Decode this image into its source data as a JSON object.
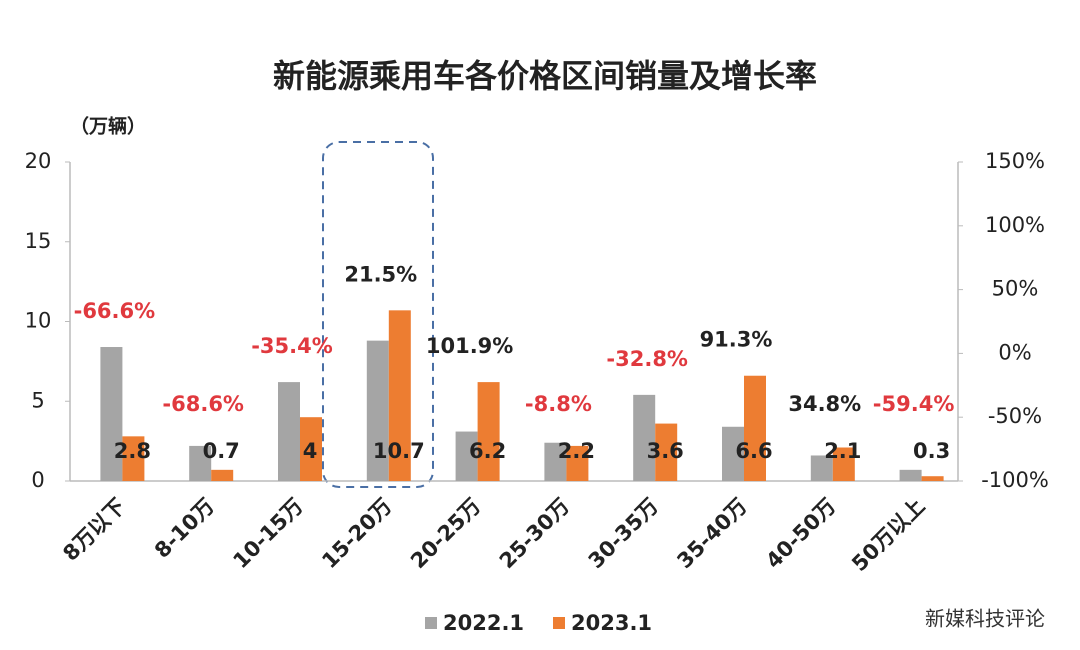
{
  "chart_data": {
    "type": "bar",
    "title": "新能源乘用车各价格区间销量及增长率",
    "unit_label": "（万辆）",
    "categories": [
      "8万以下",
      "8-10万",
      "10-15万",
      "15-20万",
      "20-25万",
      "25-30万",
      "30-35万",
      "35-40万",
      "40-50万",
      "50万以上"
    ],
    "series": [
      {
        "name": "2022.1",
        "color": "#a5a5a5",
        "values": [
          8.4,
          2.2,
          6.2,
          8.8,
          3.1,
          2.4,
          5.4,
          3.4,
          1.6,
          0.7
        ]
      },
      {
        "name": "2023.1",
        "color": "#ed7d31",
        "values": [
          2.8,
          0.7,
          4,
          10.7,
          6.2,
          2.2,
          3.6,
          6.6,
          2.1,
          0.3
        ]
      }
    ],
    "growth_labels": [
      "-66.6%",
      "-68.6%",
      "-35.4%",
      "21.5%",
      "101.9%",
      "-8.8%",
      "-32.8%",
      "91.3%",
      "34.8%",
      "-59.4%"
    ],
    "ylim": [
      0,
      20
    ],
    "yticks": [
      0,
      5,
      10,
      15,
      20
    ],
    "y2lim": [
      -100,
      150
    ],
    "y2ticks": [
      {
        "value": -100,
        "label": "-100%"
      },
      {
        "value": -50,
        "label": "-50%"
      },
      {
        "value": 0,
        "label": "0%"
      },
      {
        "value": 50,
        "label": "50%"
      },
      {
        "value": 100,
        "label": "100%"
      },
      {
        "value": 150,
        "label": "150%"
      }
    ],
    "watermark": "新媒科技评论"
  }
}
